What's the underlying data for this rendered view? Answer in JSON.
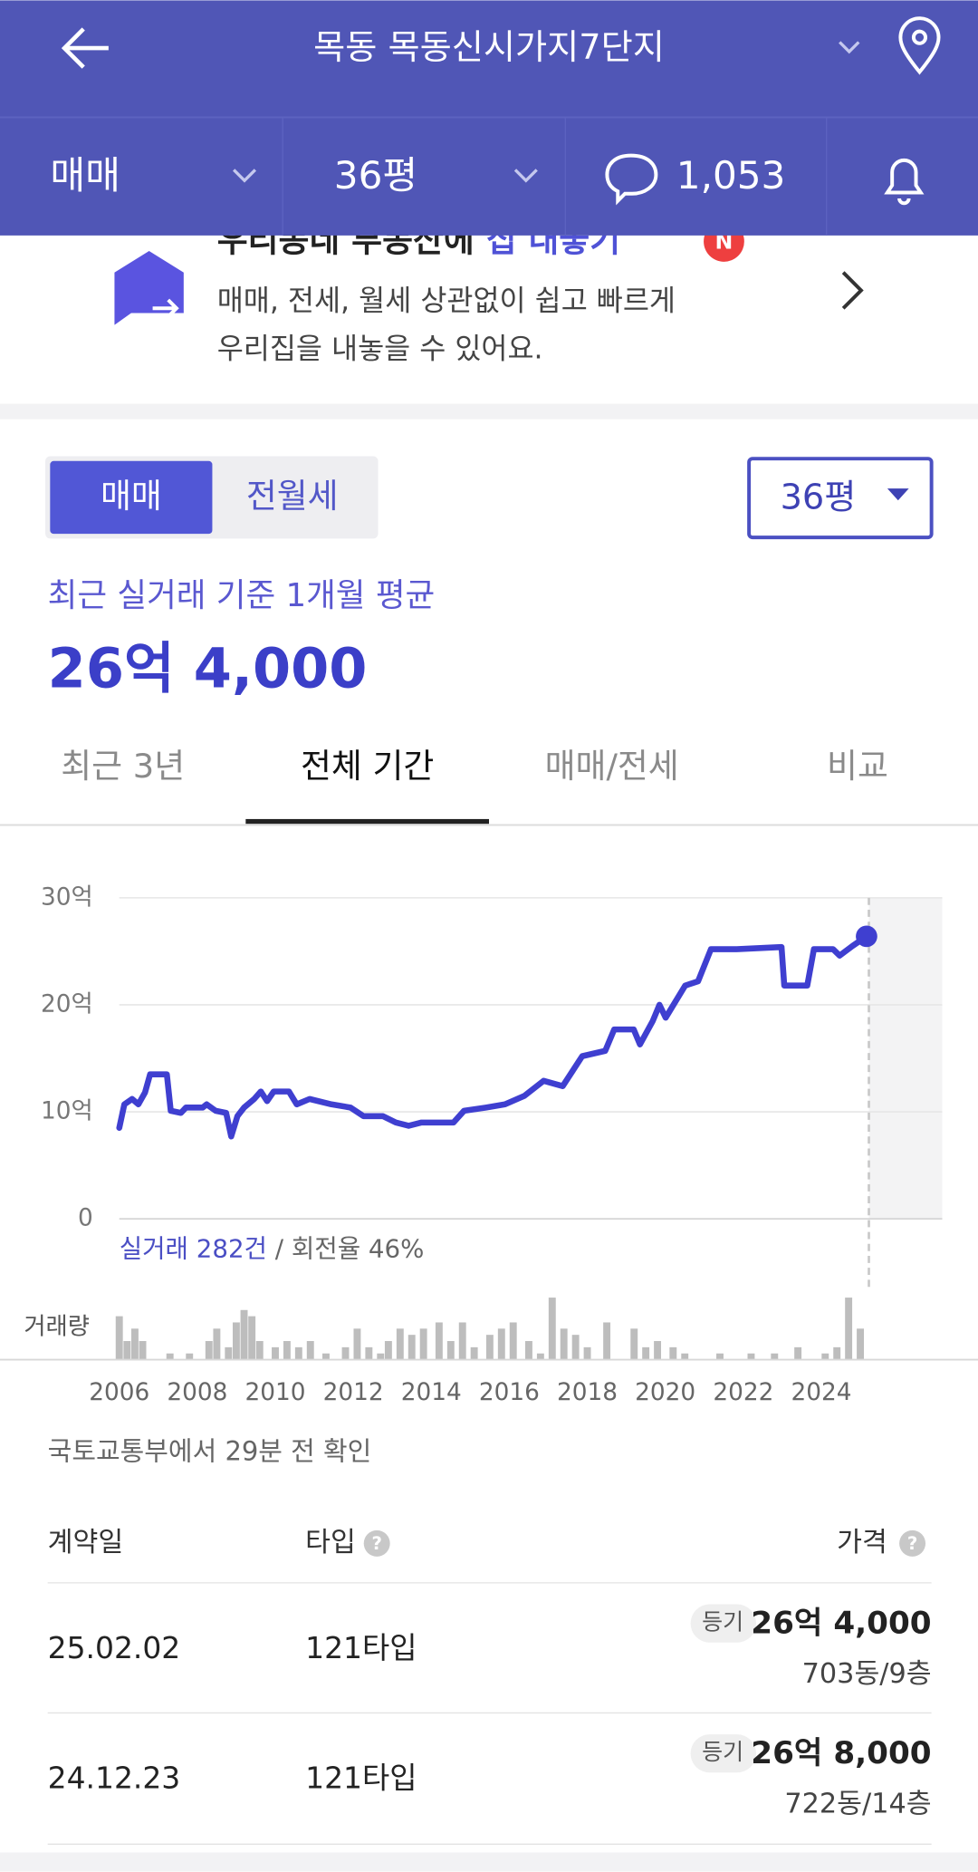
{
  "header": {
    "title": "목동 목동신시가지7단지"
  },
  "filters": {
    "deal": "매매",
    "size": "36평",
    "comments": "1,053"
  },
  "banner": {
    "title_plain": "우리동네 부동산에 ",
    "title_accent": "집 내놓기",
    "badge": "N",
    "line1": "매매, 전세, 월세 상관없이 쉽고 빠르게",
    "line2": "우리집을 내놓을 수 있어요."
  },
  "toggle": {
    "active": "매매",
    "other": "전월세",
    "size": "36평"
  },
  "summary": {
    "caption": "최근 실거래 기준 1개월 평균",
    "price": "26억 4,000"
  },
  "tabs": [
    "최근 3년",
    "전체 기간",
    "매매/전세",
    "비교"
  ],
  "chart_data": {
    "type": "line",
    "color": "#3f3fd0",
    "x": [
      2006.0,
      2006.13,
      2006.33,
      2006.49,
      2006.66,
      2006.79,
      2007.22,
      2007.32,
      2007.58,
      2007.71,
      2008.14,
      2008.24,
      2008.47,
      2008.74,
      2008.87,
      2009.03,
      2009.2,
      2009.46,
      2009.63,
      2009.79,
      2009.96,
      2010.35,
      2010.55,
      2010.88,
      2011.44,
      2011.93,
      2012.26,
      2012.76,
      2013.09,
      2013.42,
      2013.75,
      2014.57,
      2014.84,
      2015.4,
      2015.89,
      2016.39,
      2016.88,
      2017.37,
      2017.87,
      2018.46,
      2018.69,
      2019.19,
      2019.35,
      2019.68,
      2019.85,
      2020.01,
      2020.51,
      2020.84,
      2021.17,
      2021.83,
      2022.98,
      2023.05,
      2023.64,
      2023.81,
      2024.3,
      2024.47,
      2024.8,
      2025.16
    ],
    "values": [
      8.5,
      10.7,
      11.2,
      10.7,
      11.8,
      13.5,
      13.5,
      10.1,
      9.9,
      10.4,
      10.4,
      10.7,
      10.1,
      9.9,
      7.7,
      9.6,
      10.4,
      11.2,
      11.9,
      11.0,
      11.9,
      11.9,
      10.7,
      11.2,
      10.7,
      10.4,
      9.6,
      9.6,
      9.0,
      8.7,
      9.0,
      9.0,
      10.1,
      10.4,
      10.7,
      11.5,
      12.9,
      12.4,
      15.2,
      15.7,
      17.7,
      17.7,
      16.3,
      18.5,
      20.0,
      18.8,
      21.8,
      22.2,
      25.2,
      25.2,
      25.4,
      21.8,
      21.8,
      25.2,
      25.2,
      24.6,
      25.5,
      26.4
    ],
    "xlim": [
      2006,
      2027.1
    ],
    "ylim": [
      0,
      30
    ],
    "yticks": [
      0,
      {
        "value": 10,
        "label": "10억"
      },
      {
        "value": 20,
        "label": "20억"
      },
      {
        "value": 30,
        "label": "30억"
      }
    ],
    "xticks": [
      2006,
      2008,
      2010,
      2012,
      2014,
      2016,
      2018,
      2020,
      2022,
      2024
    ],
    "grid": true,
    "today": 2025.22,
    "stat_count": "실거래 282건",
    "stat_rate": " / 회전율 46%",
    "volume": {
      "label": "거래량",
      "color": "#bdbdbd",
      "ylim": [
        0,
        10
      ],
      "x": [
        2006.0,
        2006.2,
        2006.4,
        2006.6,
        2007.3,
        2007.8,
        2008.3,
        2008.5,
        2008.8,
        2009.0,
        2009.2,
        2009.4,
        2009.6,
        2010.0,
        2010.3,
        2010.6,
        2010.9,
        2011.3,
        2011.8,
        2012.1,
        2012.4,
        2012.7,
        2012.9,
        2013.2,
        2013.5,
        2013.8,
        2014.2,
        2014.5,
        2014.8,
        2015.1,
        2015.5,
        2015.8,
        2016.1,
        2016.5,
        2016.8,
        2017.1,
        2017.4,
        2017.7,
        2018.0,
        2018.5,
        2019.2,
        2019.5,
        2019.8,
        2020.2,
        2020.5,
        2021.4,
        2022.2,
        2022.8,
        2023.4,
        2024.1,
        2024.4,
        2024.7,
        2025.0
      ],
      "values": [
        7,
        3,
        5,
        3,
        1,
        1,
        3,
        5,
        2,
        6,
        8,
        7,
        3,
        2,
        3,
        2,
        3,
        1,
        2,
        5,
        2,
        1,
        3,
        5,
        4,
        5,
        6,
        3,
        6,
        2,
        4,
        5,
        6,
        3,
        1,
        10,
        5,
        4,
        2,
        6,
        5,
        2,
        3,
        2,
        1,
        1,
        1,
        1,
        2,
        1,
        2,
        10,
        5
      ]
    }
  },
  "source": "국토교통부에서 29분 전 확인",
  "table": {
    "columns": [
      "계약일",
      "타입",
      "가격"
    ],
    "rows": [
      {
        "date": "25.02.02",
        "type": "121타입",
        "badge": "등기",
        "price": "26억 4,000",
        "unit": "703동/9층"
      },
      {
        "date": "24.12.23",
        "type": "121타입",
        "badge": "등기",
        "price": "26억 8,000",
        "unit": "722동/14층"
      }
    ]
  }
}
